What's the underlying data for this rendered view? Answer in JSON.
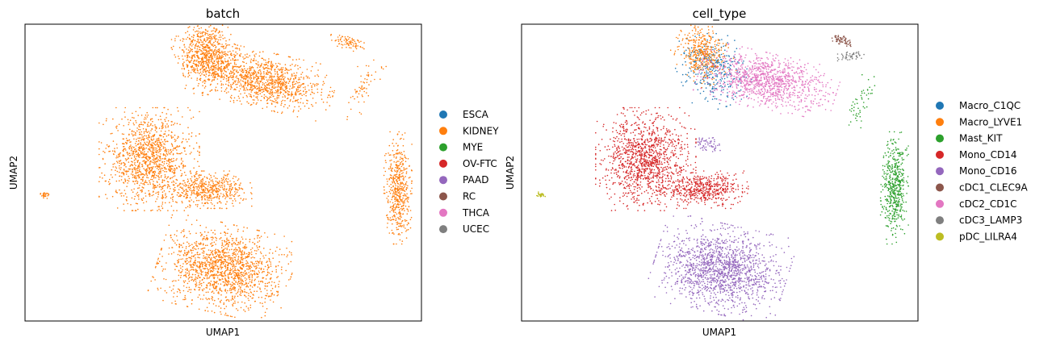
{
  "chart_data": [
    {
      "type": "scatter",
      "title": "batch",
      "xlabel": "UMAP1",
      "ylabel": "UMAP2",
      "grid": false,
      "legend_placement": "right",
      "legend": [
        {
          "label": "ESCA",
          "color": "#1f77b4"
        },
        {
          "label": "KIDNEY",
          "color": "#ff7f0e"
        },
        {
          "label": "MYE",
          "color": "#2ca02c"
        },
        {
          "label": "OV-FTC",
          "color": "#d62728"
        },
        {
          "label": "PAAD",
          "color": "#9467bd"
        },
        {
          "label": "RC",
          "color": "#8c564b"
        },
        {
          "label": "THCA",
          "color": "#e377c2"
        },
        {
          "label": "UCEC",
          "color": "#7f7f7f"
        }
      ],
      "clusters": [
        {
          "color": "#ff7f0e",
          "cx": -6.0,
          "cy": 8.3,
          "rx": 1.1,
          "ry": 1.5,
          "rot": 20,
          "n": 700
        },
        {
          "color": "#ff7f0e",
          "cx": -3.4,
          "cy": 6.9,
          "rx": 2.6,
          "ry": 1.2,
          "rot": -15,
          "n": 1100
        },
        {
          "color": "#ff7f0e",
          "cx": -8.7,
          "cy": 2.5,
          "rx": 1.8,
          "ry": 2.2,
          "rot": 0,
          "n": 1200
        },
        {
          "color": "#ff7f0e",
          "cx": -6.0,
          "cy": 0.8,
          "rx": 1.6,
          "ry": 0.8,
          "rot": 0,
          "n": 500
        },
        {
          "color": "#ff7f0e",
          "cx": -5.2,
          "cy": -3.6,
          "rx": 2.4,
          "ry": 1.9,
          "rot": -15,
          "n": 1500
        },
        {
          "color": "#ff7f0e",
          "cx": 2.9,
          "cy": 0.9,
          "rx": 0.5,
          "ry": 2.4,
          "rot": 0,
          "n": 500
        },
        {
          "color": "#ff7f0e",
          "cx": 0.6,
          "cy": 9.0,
          "rx": 0.7,
          "ry": 0.3,
          "rot": -20,
          "n": 80
        },
        {
          "color": "#ff7f0e",
          "cx": 1.3,
          "cy": 6.5,
          "rx": 0.5,
          "ry": 1.5,
          "rot": -20,
          "n": 60
        },
        {
          "color": "#ff7f0e",
          "cx": -13.6,
          "cy": 0.5,
          "rx": 0.2,
          "ry": 0.15,
          "rot": 0,
          "n": 25
        }
      ]
    },
    {
      "type": "scatter",
      "title": "cell_type",
      "xlabel": "UMAP1",
      "ylabel": "UMAP2",
      "grid": false,
      "legend_placement": "right",
      "legend": [
        {
          "label": "Macro_C1QC",
          "color": "#1f77b4"
        },
        {
          "label": "Macro_LYVE1",
          "color": "#ff7f0e"
        },
        {
          "label": "Mast_KIT",
          "color": "#2ca02c"
        },
        {
          "label": "Mono_CD14",
          "color": "#d62728"
        },
        {
          "label": "Mono_CD16",
          "color": "#9467bd"
        },
        {
          "label": "cDC1_CLEC9A",
          "color": "#8c564b"
        },
        {
          "label": "cDC2_CD1C",
          "color": "#e377c2"
        },
        {
          "label": "cDC3_LAMP3",
          "color": "#7f7f7f"
        },
        {
          "label": "pDC_LILRA4",
          "color": "#bcbd22"
        }
      ],
      "clusters": [
        {
          "color": "#1f77b4",
          "cx": -5.6,
          "cy": 7.4,
          "rx": 1.2,
          "ry": 1.6,
          "rot": 20,
          "n": 350
        },
        {
          "color": "#ff7f0e",
          "cx": -6.1,
          "cy": 8.4,
          "rx": 1.0,
          "ry": 1.4,
          "rot": 20,
          "n": 400
        },
        {
          "color": "#e377c2",
          "cx": -3.0,
          "cy": 6.8,
          "rx": 2.5,
          "ry": 1.2,
          "rot": -15,
          "n": 1100
        },
        {
          "color": "#d62728",
          "cx": -8.7,
          "cy": 2.5,
          "rx": 1.8,
          "ry": 2.2,
          "rot": 0,
          "n": 1200
        },
        {
          "color": "#d62728",
          "cx": -6.0,
          "cy": 0.8,
          "rx": 1.6,
          "ry": 0.8,
          "rot": 0,
          "n": 500
        },
        {
          "color": "#9467bd",
          "cx": -5.8,
          "cy": 3.3,
          "rx": 0.6,
          "ry": 0.4,
          "rot": 0,
          "n": 60
        },
        {
          "color": "#9467bd",
          "cx": -5.2,
          "cy": -3.6,
          "rx": 2.4,
          "ry": 1.9,
          "rot": -15,
          "n": 1500
        },
        {
          "color": "#2ca02c",
          "cx": 2.9,
          "cy": 0.9,
          "rx": 0.5,
          "ry": 2.4,
          "rot": 0,
          "n": 500
        },
        {
          "color": "#2ca02c",
          "cx": 1.3,
          "cy": 5.6,
          "rx": 0.4,
          "ry": 1.4,
          "rot": -20,
          "n": 50
        },
        {
          "color": "#8c564b",
          "cx": 0.5,
          "cy": 9.1,
          "rx": 0.4,
          "ry": 0.2,
          "rot": -20,
          "n": 60
        },
        {
          "color": "#7f7f7f",
          "cx": 0.9,
          "cy": 8.2,
          "rx": 0.5,
          "ry": 0.2,
          "rot": 0,
          "n": 50
        },
        {
          "color": "#bcbd22",
          "cx": -13.6,
          "cy": 0.5,
          "rx": 0.2,
          "ry": 0.15,
          "rot": 0,
          "n": 25
        }
      ]
    }
  ]
}
